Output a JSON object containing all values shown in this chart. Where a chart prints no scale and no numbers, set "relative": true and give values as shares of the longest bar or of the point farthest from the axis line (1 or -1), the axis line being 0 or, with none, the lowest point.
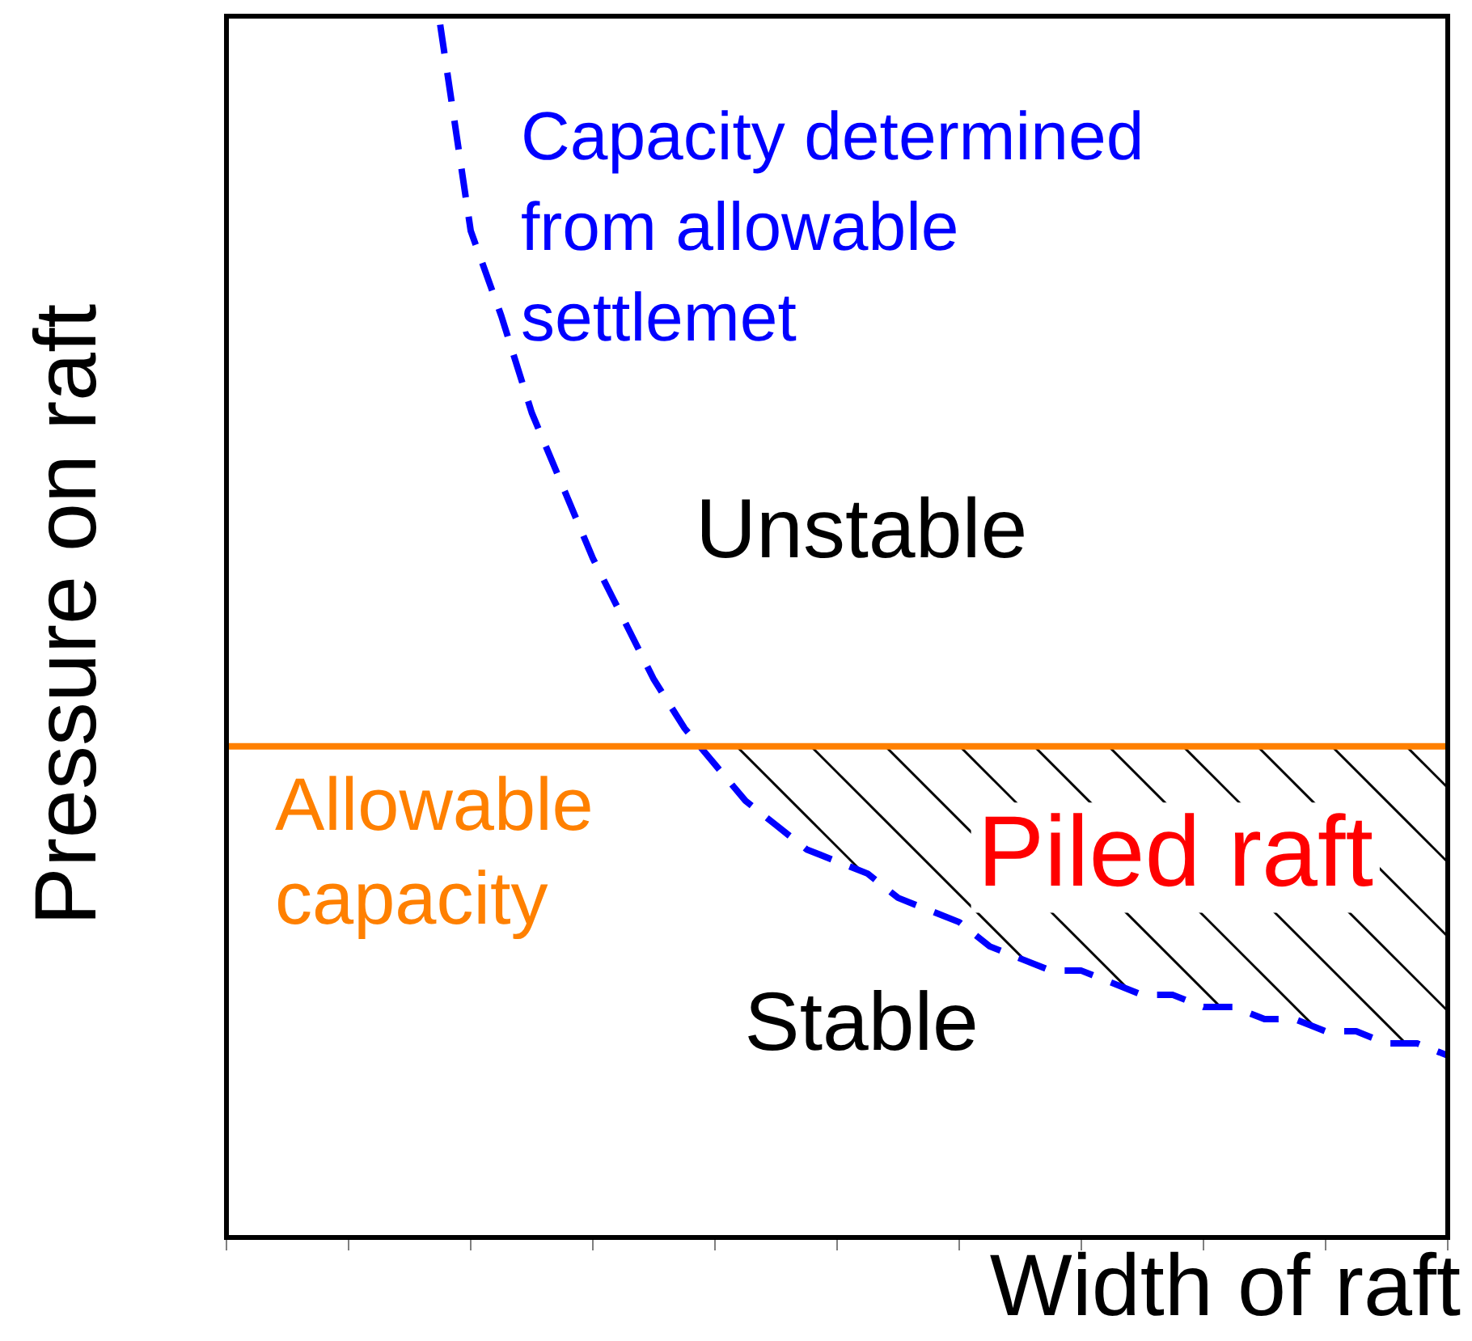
{
  "chart_data": {
    "type": "line",
    "relative": true,
    "xlabel": "Width of raft",
    "ylabel": "Pressure on raft",
    "categories": [
      null,
      null,
      null,
      null,
      null,
      null,
      null,
      null,
      null,
      null,
      null,
      null,
      null,
      null,
      null,
      null,
      null,
      null,
      null,
      null,
      null,
      null,
      null,
      null,
      null,
      null,
      null,
      null,
      null,
      null,
      null,
      null,
      null,
      null,
      null,
      null,
      null,
      null,
      null,
      null,
      null
    ],
    "series": [
      {
        "name": "Capacity determined from allowable settlemet",
        "color": "#0000ff",
        "values": [
          null,
          null,
          null,
          null,
          null,
          null,
          null,
          1.0,
          0.83,
          0.76,
          0.68,
          0.62,
          0.56,
          0.51,
          0.46,
          0.42,
          0.39,
          0.36,
          0.34,
          0.32,
          0.31,
          0.3,
          0.28,
          0.27,
          0.26,
          0.24,
          0.23,
          0.22,
          0.22,
          0.21,
          0.2,
          0.2,
          0.19,
          0.19,
          0.18,
          0.18,
          0.17,
          0.17,
          0.16,
          0.16,
          0.15
        ]
      }
    ],
    "ref_lines": [
      {
        "axis": "y",
        "value": 0.405,
        "label": "Allowable capacity",
        "color": "#ff8000"
      }
    ],
    "annotations": [
      "Unstable",
      "Stable",
      "Piled raft"
    ],
    "legend": false,
    "grid": false,
    "tick_labels": false,
    "marker": "none",
    "line_style": "dashed"
  }
}
